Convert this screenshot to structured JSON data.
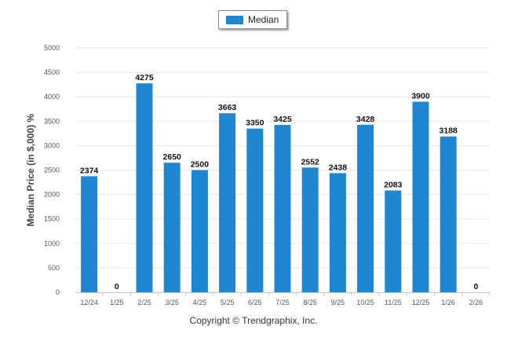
{
  "chart_data": {
    "type": "bar",
    "categories": [
      "12/24",
      "1/25",
      "2/25",
      "3/25",
      "4/25",
      "5/25",
      "6/25",
      "7/25",
      "8/25",
      "9/25",
      "10/25",
      "11/25",
      "12/25",
      "1/26",
      "2/26"
    ],
    "series": [
      {
        "name": "Median",
        "values": [
          2374,
          0,
          4275,
          2650,
          2500,
          3663,
          3350,
          3425,
          2552,
          2438,
          3428,
          2083,
          3900,
          3188,
          0
        ]
      }
    ],
    "ylabel": "Median Price (in $,000) %",
    "xlabel": "",
    "ylim": [
      0,
      5000
    ],
    "yticks": [
      0,
      500,
      1000,
      1500,
      2000,
      2500,
      3000,
      3500,
      4000,
      4500,
      5000
    ],
    "grid": true,
    "legend": "top-center",
    "bar_color": "#1f87cf"
  },
  "footer": {
    "copyright": "Copyright © Trendgraphix, Inc."
  }
}
